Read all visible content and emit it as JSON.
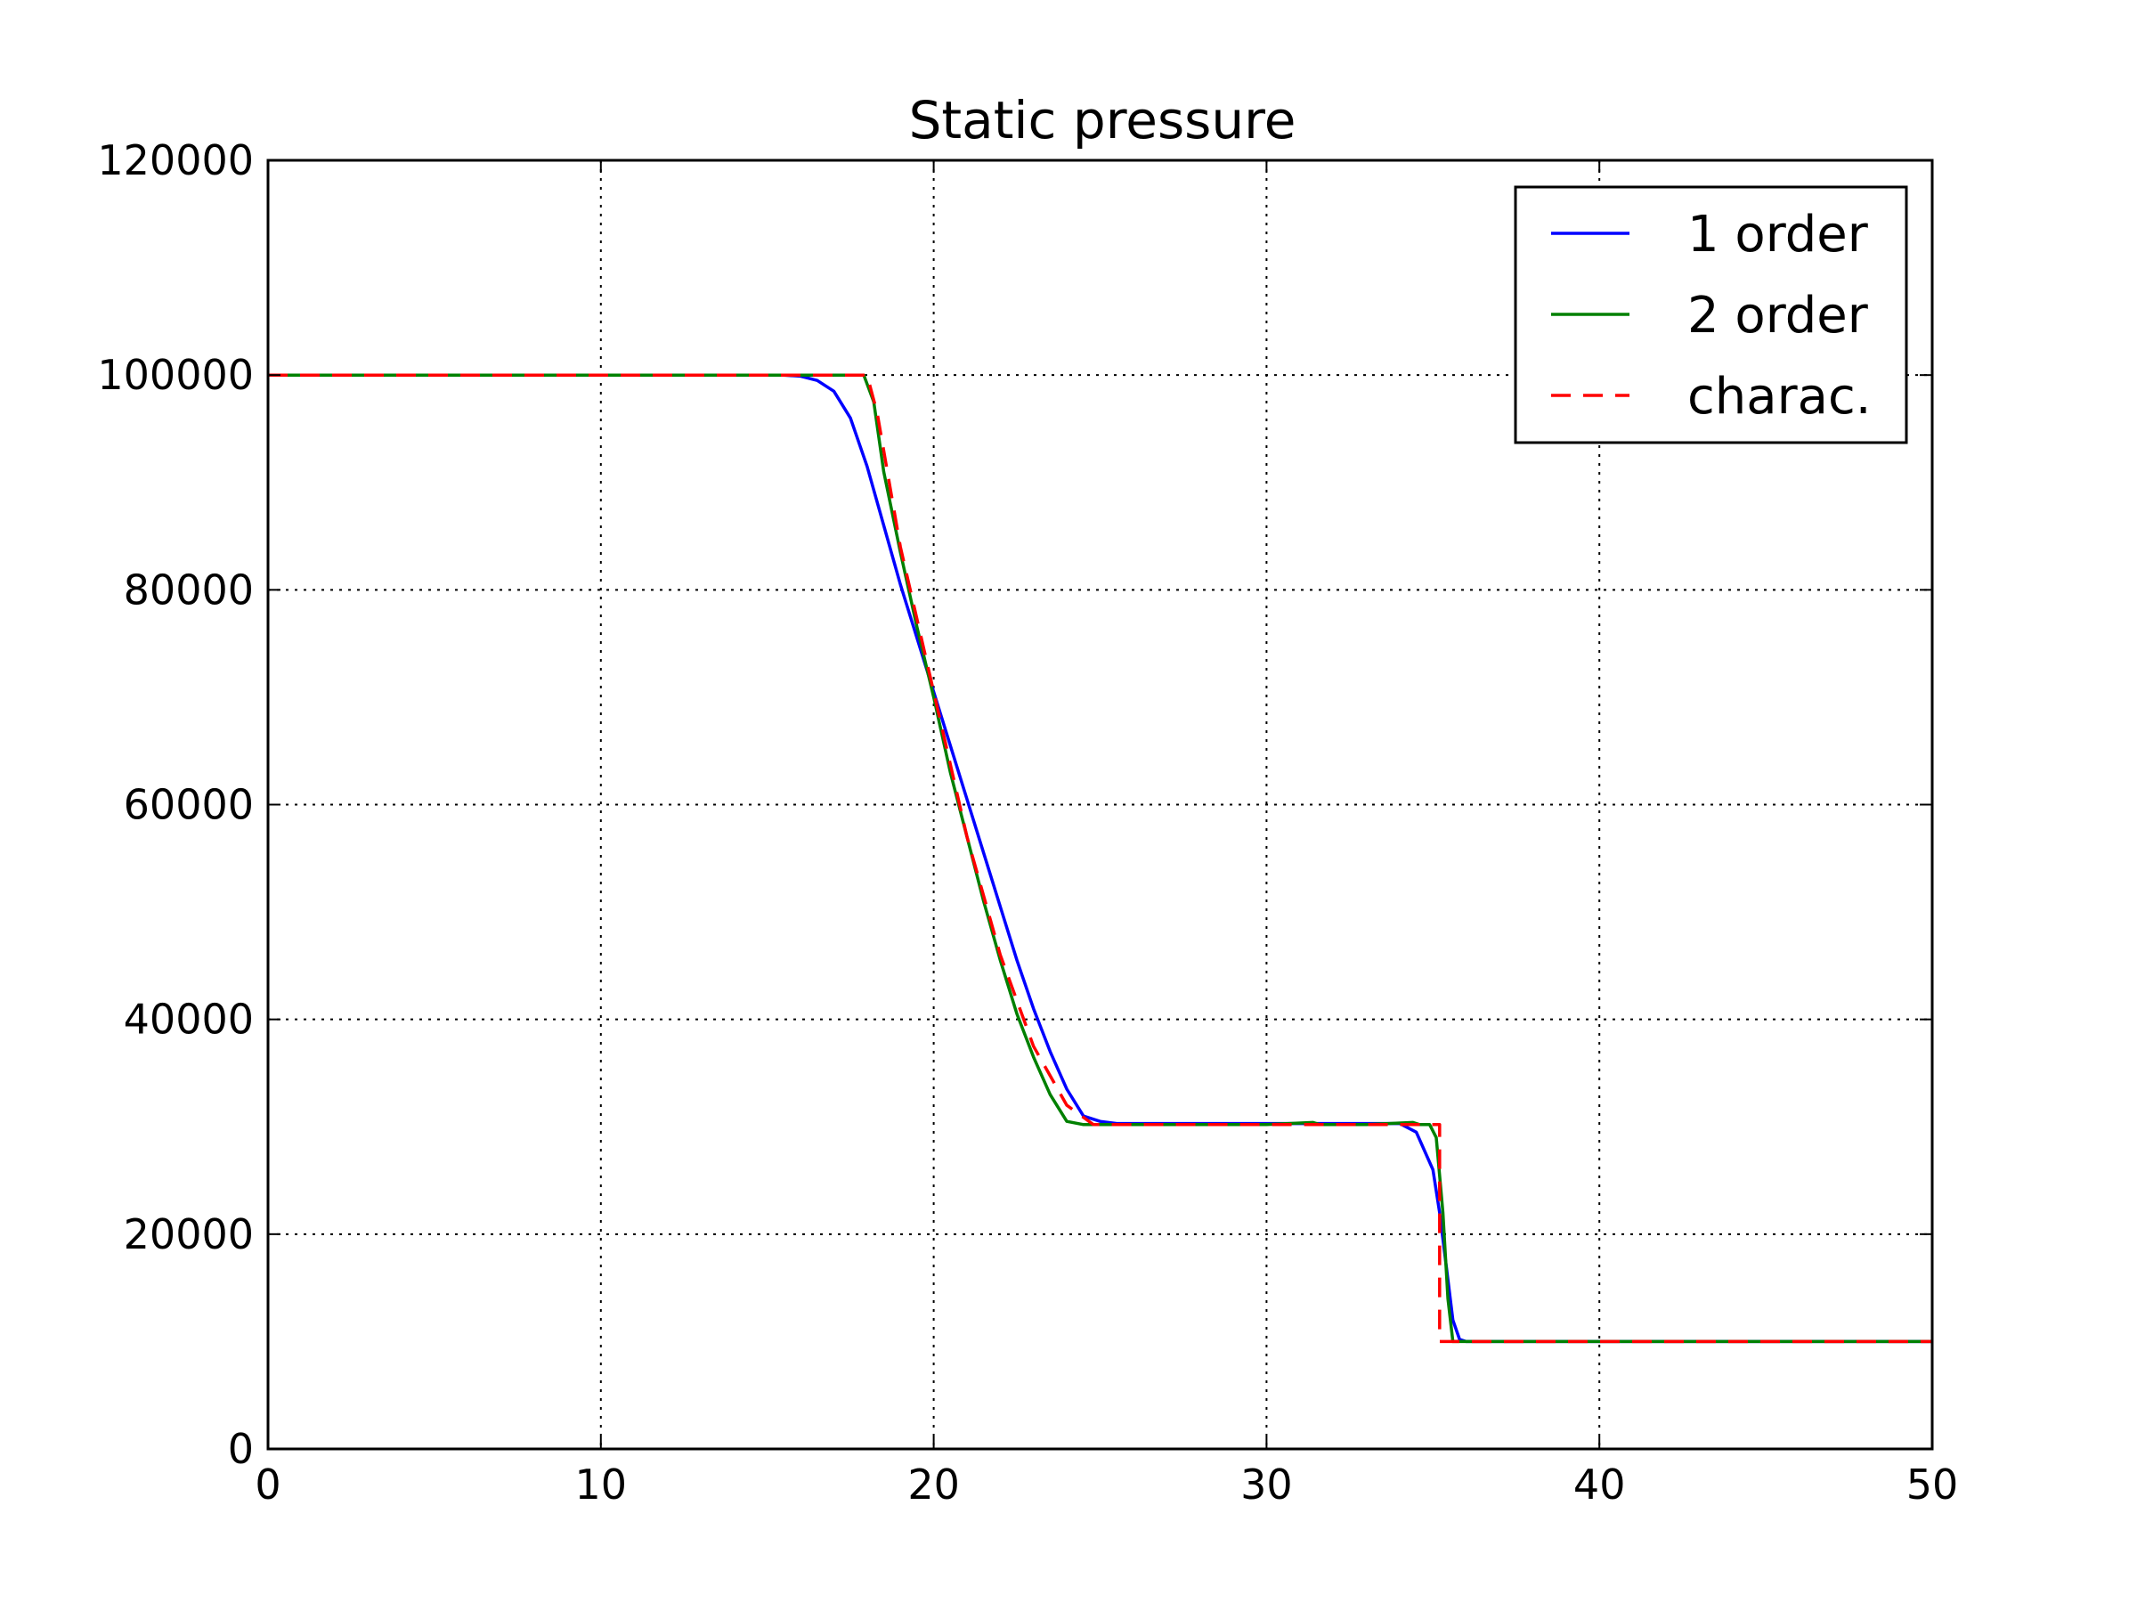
{
  "chart_data": {
    "type": "line",
    "title": "Static pressure",
    "xlabel": "",
    "ylabel": "",
    "xlim": [
      0,
      50
    ],
    "ylim": [
      0,
      120000
    ],
    "xticks": [
      "0",
      "10",
      "20",
      "30",
      "40",
      "50"
    ],
    "yticks": [
      "0",
      "20000",
      "40000",
      "60000",
      "80000",
      "100000",
      "120000"
    ],
    "grid": true,
    "legend_position": "top-right",
    "series": [
      {
        "name": "1 order",
        "color": "#0000ff",
        "dash": "solid",
        "x": [
          0,
          15.5,
          16,
          16.5,
          17,
          17.5,
          18,
          18.5,
          19,
          19.5,
          20,
          20.5,
          21,
          21.5,
          22,
          22.5,
          23,
          23.5,
          24,
          24.5,
          25,
          25.5,
          26,
          30,
          34,
          34.5,
          35,
          35.2,
          35.4,
          35.6,
          35.8,
          36,
          36.5,
          40,
          50
        ],
        "y": [
          100000,
          100000,
          99900,
          99500,
          98500,
          96000,
          91500,
          86000,
          80500,
          75500,
          70500,
          65500,
          60500,
          55500,
          50500,
          45500,
          41000,
          37000,
          33500,
          31000,
          30500,
          30300,
          30300,
          30300,
          30300,
          29500,
          26000,
          22000,
          17000,
          12000,
          10200,
          10000,
          10000,
          10000,
          10000
        ]
      },
      {
        "name": "2 order",
        "color": "#008000",
        "dash": "solid",
        "x": [
          0,
          17.9,
          18.2,
          18.5,
          19,
          19.5,
          20,
          20.5,
          21,
          21.5,
          22,
          22.5,
          23,
          23.5,
          24,
          24.5,
          24.9,
          25.5,
          30,
          31.4,
          31.6,
          33,
          34.4,
          34.6,
          34.9,
          35.1,
          35.3,
          35.45,
          35.6,
          36,
          40,
          50
        ],
        "y": [
          100000,
          100000,
          97500,
          91000,
          83500,
          76500,
          70000,
          63000,
          57000,
          51000,
          45500,
          40500,
          36500,
          33000,
          30500,
          30200,
          30200,
          30200,
          30200,
          30400,
          30200,
          30200,
          30400,
          30200,
          30200,
          29000,
          22000,
          14000,
          10000,
          10000,
          10000,
          10000
        ]
      },
      {
        "name": "charac.",
        "color": "#ff0000",
        "dash": "dashed",
        "x": [
          0,
          18,
          18.3,
          19,
          20,
          21,
          22,
          23,
          24,
          24.8,
          30,
          35.2,
          35.2,
          36,
          50
        ],
        "y": [
          100000,
          100000,
          96500,
          84000,
          70500,
          57000,
          46000,
          37500,
          32000,
          30200,
          30200,
          30200,
          10000,
          10000,
          10000
        ]
      }
    ]
  }
}
